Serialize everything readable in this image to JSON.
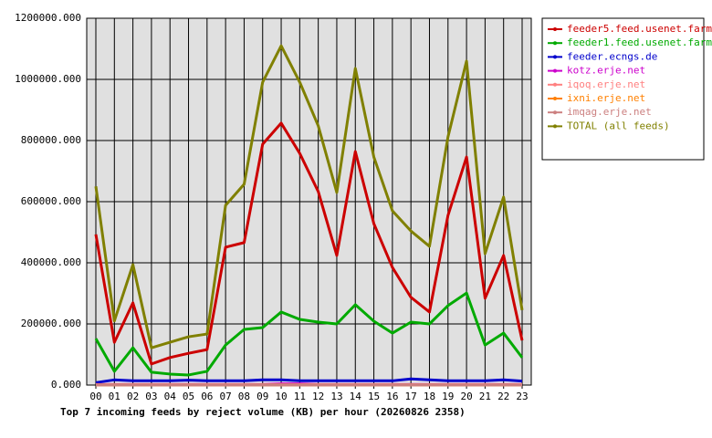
{
  "chart_data": {
    "type": "line",
    "title": "Top 7 incoming feeds by reject volume (KB) per hour (20260826 2358)",
    "categories": [
      "00",
      "01",
      "02",
      "03",
      "04",
      "05",
      "06",
      "07",
      "08",
      "09",
      "10",
      "11",
      "12",
      "13",
      "14",
      "15",
      "16",
      "17",
      "18",
      "19",
      "20",
      "21",
      "22",
      "23"
    ],
    "ylim": [
      0,
      1200000
    ],
    "yticks": [
      {
        "value": 0,
        "label": "0.000"
      },
      {
        "value": 200000,
        "label": "200000.000"
      },
      {
        "value": 400000,
        "label": "400000.000"
      },
      {
        "value": 600000,
        "label": "600000.000"
      },
      {
        "value": 800000,
        "label": "800000.000"
      },
      {
        "value": 1000000,
        "label": "1000000.000"
      },
      {
        "value": 1200000,
        "label": "1200000.000"
      }
    ],
    "grid": true,
    "legend": "right",
    "series": [
      {
        "name": "feeder5.feed.usenet.farm",
        "color": "#cc0000",
        "values": [
          493000,
          140000,
          269000,
          69000,
          90000,
          104000,
          116000,
          451000,
          466000,
          788000,
          857000,
          758000,
          633000,
          424000,
          764000,
          528000,
          385000,
          287000,
          239000,
          555000,
          746000,
          284000,
          424000,
          146000
        ]
      },
      {
        "name": "feeder1.feed.usenet.farm",
        "color": "#00aa00",
        "values": [
          152000,
          45000,
          122000,
          42000,
          36000,
          33000,
          45000,
          131000,
          182000,
          188000,
          239000,
          215000,
          206000,
          200000,
          263000,
          209000,
          170000,
          206000,
          200000,
          260000,
          301000,
          131000,
          170000,
          90000
        ]
      },
      {
        "name": "feeder.ecngs.de",
        "color": "#0000cc",
        "values": [
          8000,
          17000,
          14000,
          14000,
          14000,
          16000,
          14000,
          14000,
          14000,
          17000,
          17000,
          14000,
          14000,
          14000,
          14000,
          14000,
          14000,
          20000,
          17000,
          14000,
          14000,
          14000,
          17000,
          13000
        ]
      },
      {
        "name": "kotz.erje.net",
        "color": "#cc00cc",
        "values": [
          2000,
          2000,
          2000,
          2000,
          2000,
          2000,
          2000,
          2000,
          2000,
          2000,
          4000,
          4000,
          2000,
          2000,
          2000,
          2000,
          2000,
          2000,
          2000,
          2000,
          2000,
          2000,
          2000,
          2000
        ]
      },
      {
        "name": "iqoq.erje.net",
        "color": "#ff8080",
        "values": [
          1000,
          1000,
          1000,
          1000,
          1000,
          1000,
          1000,
          1000,
          1000,
          1000,
          1000,
          1000,
          1000,
          1000,
          1000,
          1000,
          1000,
          1000,
          1000,
          1000,
          1000,
          1000,
          1000,
          1000
        ]
      },
      {
        "name": "ixni.erje.net",
        "color": "#ff8000",
        "values": [
          500,
          500,
          500,
          500,
          500,
          500,
          500,
          500,
          500,
          500,
          500,
          500,
          500,
          500,
          500,
          500,
          500,
          500,
          500,
          500,
          500,
          500,
          500,
          500
        ]
      },
      {
        "name": "imqag.erje.net",
        "color": "#cc8080",
        "values": [
          500,
          500,
          500,
          500,
          500,
          500,
          500,
          500,
          500,
          500,
          500,
          500,
          500,
          500,
          500,
          500,
          500,
          500,
          500,
          500,
          500,
          500,
          500,
          500
        ]
      },
      {
        "name": "TOTAL (all feeds)",
        "color": "#808000",
        "values": [
          650000,
          210000,
          394000,
          122000,
          140000,
          158000,
          167000,
          588000,
          657000,
          991000,
          1110000,
          991000,
          848000,
          630000,
          1036000,
          746000,
          570000,
          504000,
          454000,
          812000,
          1060000,
          430000,
          615000,
          245000
        ]
      }
    ]
  }
}
